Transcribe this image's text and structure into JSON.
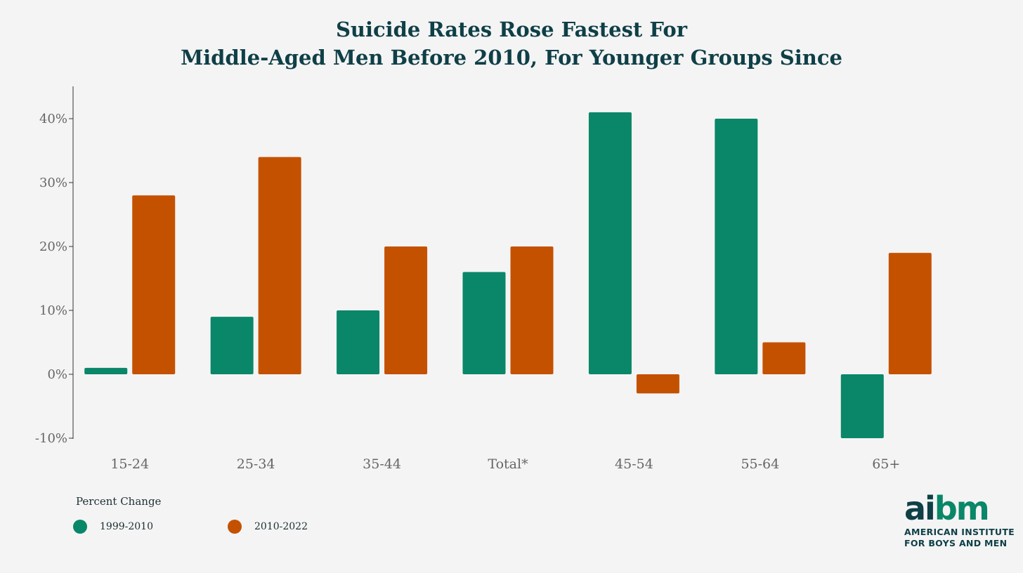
{
  "title_line1": "Suicide Rates Rose Fastest For",
  "title_line2": "Middle-Aged Men Before 2010, For Younger Groups Since",
  "chart_data": {
    "type": "bar",
    "categories": [
      "15-24",
      "25-34",
      "35-44",
      "Total*",
      "45-54",
      "55-64",
      "65+"
    ],
    "series": [
      {
        "name": "1999-2010",
        "color": "#0a8768",
        "values": [
          1,
          9,
          10,
          16,
          41,
          40,
          -10
        ]
      },
      {
        "name": "2010-2022",
        "color": "#c45100",
        "values": [
          28,
          34,
          20,
          20,
          -3,
          5,
          19
        ]
      }
    ],
    "ylim": [
      -10,
      45
    ],
    "yticks": [
      -10,
      0,
      10,
      20,
      30,
      40
    ],
    "ytick_labels": [
      "-10%",
      "0%",
      "10%",
      "20%",
      "30%",
      "40%"
    ],
    "xlabel": "",
    "ylabel": "",
    "grid": false,
    "legend_title": "Percent Change",
    "legend_position": "bottom-left"
  },
  "logo": {
    "mark_part1": "ai",
    "mark_part2": "bm",
    "org_line1": "AMERICAN INSTITUTE",
    "org_line2": "FOR BOYS AND MEN"
  }
}
